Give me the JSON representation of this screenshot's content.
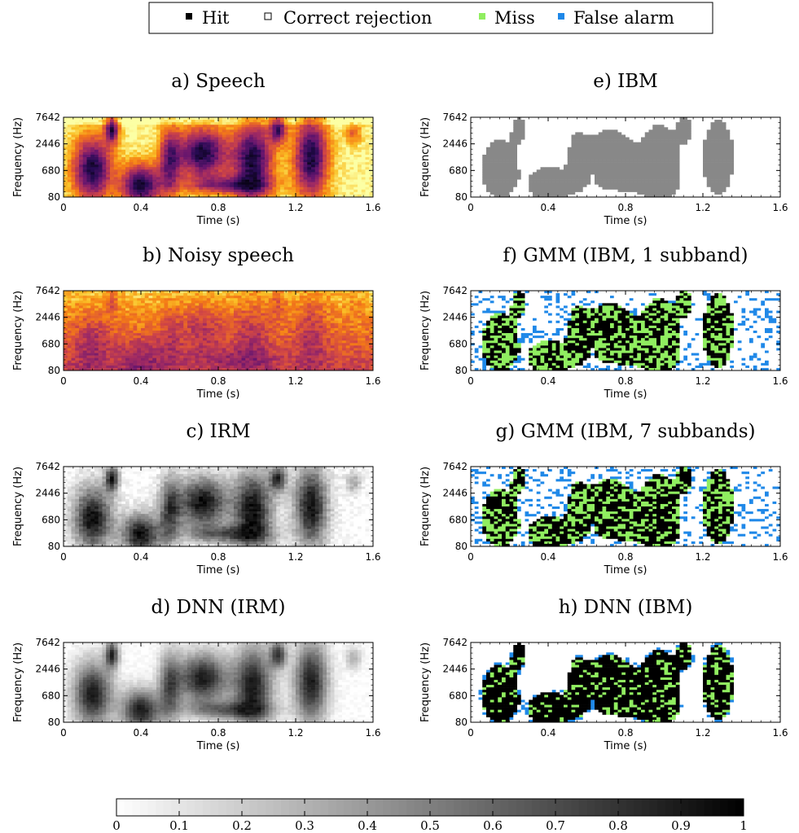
{
  "legend": {
    "entries": [
      {
        "label": "Hit",
        "color": "#000000",
        "symbol": "filled-square"
      },
      {
        "label": "Correct rejection",
        "color": "#ffffff",
        "symbol": "hollow-square"
      },
      {
        "label": "Miss",
        "color": "#90ee60",
        "symbol": "filled-square"
      },
      {
        "label": "False alarm",
        "color": "#1f88e8",
        "symbol": "filled-square"
      }
    ]
  },
  "colorbar": {
    "ticks": [
      "0",
      "0.1",
      "0.2",
      "0.3",
      "0.4",
      "0.5",
      "0.6",
      "0.7",
      "0.8",
      "0.9",
      "1"
    ],
    "colormap": "grayscale-white-to-black"
  },
  "axes_common": {
    "xlabel": "Time (s)",
    "ylabel": "Frequency (Hz)",
    "xticks": [
      "0",
      "0.4",
      "0.8",
      "1.2",
      "1.6"
    ],
    "yticks": [
      "80",
      "680",
      "2446",
      "7642"
    ]
  },
  "chart_data": [
    {
      "type": "heatmap",
      "title": "a) Speech",
      "colormap": "inferno",
      "xlim": [
        0,
        1.6
      ],
      "ylim": [
        80,
        7642
      ]
    },
    {
      "type": "heatmap",
      "title": "b) Noisy speech",
      "colormap": "inferno",
      "xlim": [
        0,
        1.6
      ],
      "ylim": [
        80,
        7642
      ]
    },
    {
      "type": "heatmap",
      "title": "c) IRM",
      "colormap": "grayscale",
      "xlim": [
        0,
        1.6
      ],
      "ylim": [
        80,
        7642
      ]
    },
    {
      "type": "heatmap",
      "title": "d) DNN (IRM)",
      "colormap": "grayscale",
      "xlim": [
        0,
        1.6
      ],
      "ylim": [
        80,
        7642
      ]
    },
    {
      "type": "heatmap",
      "title": "e) IBM",
      "colormap": "binary-gray",
      "xlim": [
        0,
        1.6
      ],
      "ylim": [
        80,
        7642
      ]
    },
    {
      "type": "heatmap",
      "title": "f) GMM (IBM, 1 subband)",
      "colormap": "classification",
      "xlim": [
        0,
        1.6
      ],
      "ylim": [
        80,
        7642
      ]
    },
    {
      "type": "heatmap",
      "title": "g) GMM (IBM, 7 subbands)",
      "colormap": "classification",
      "xlim": [
        0,
        1.6
      ],
      "ylim": [
        80,
        7642
      ]
    },
    {
      "type": "heatmap",
      "title": "h) DNN (IBM)",
      "colormap": "classification",
      "xlim": [
        0,
        1.6
      ],
      "ylim": [
        80,
        7642
      ]
    }
  ]
}
